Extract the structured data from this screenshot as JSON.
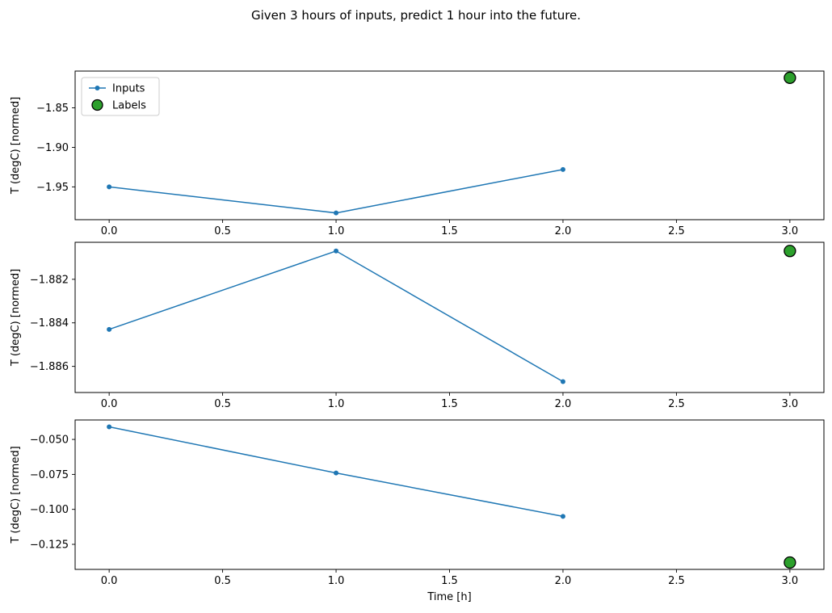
{
  "figure": {
    "title": "Given 3 hours of inputs, predict 1 hour into the future.",
    "background": "#ffffff"
  },
  "colors": {
    "inputs_line": "#1f77b4",
    "labels_marker": "#2ca02c",
    "labels_edge": "#000000",
    "axis": "#000000",
    "legend_border": "#cccccc"
  },
  "legend": {
    "visible_on_subplot": 1,
    "position": "upper-left",
    "entries": [
      "Inputs",
      "Labels"
    ]
  },
  "chart_data": [
    {
      "type": "line",
      "subplot": 1,
      "xlabel": "",
      "ylabel": "T (degC) [normed]",
      "xlim": [
        -0.15,
        3.15
      ],
      "ylim": [
        -1.9915,
        -1.8035
      ],
      "xticks": [
        0.0,
        0.5,
        1.0,
        1.5,
        2.0,
        2.5,
        3.0
      ],
      "xtick_labels": [
        "0.0",
        "0.5",
        "1.0",
        "1.5",
        "2.0",
        "2.5",
        "3.0"
      ],
      "yticks": [
        -1.85,
        -1.9,
        -1.95
      ],
      "ytick_labels": [
        "−1.85",
        "−1.90",
        "−1.95"
      ],
      "grid": false,
      "legend": true,
      "series": [
        {
          "name": "Inputs",
          "style": "line-marker",
          "color": "#1f77b4",
          "x": [
            0,
            1,
            2
          ],
          "y": [
            -1.95,
            -1.983,
            -1.928
          ]
        },
        {
          "name": "Labels",
          "style": "scatter",
          "color": "#2ca02c",
          "edge": "#000000",
          "x": [
            3
          ],
          "y": [
            -1.812
          ]
        }
      ]
    },
    {
      "type": "line",
      "subplot": 2,
      "xlabel": "",
      "ylabel": "T (degC) [normed]",
      "xlim": [
        -0.15,
        3.15
      ],
      "ylim": [
        -1.8872,
        -1.8803
      ],
      "xticks": [
        0.0,
        0.5,
        1.0,
        1.5,
        2.0,
        2.5,
        3.0
      ],
      "xtick_labels": [
        "0.0",
        "0.5",
        "1.0",
        "1.5",
        "2.0",
        "2.5",
        "3.0"
      ],
      "yticks": [
        -1.882,
        -1.884,
        -1.886
      ],
      "ytick_labels": [
        "−1.882",
        "−1.884",
        "−1.886"
      ],
      "grid": false,
      "legend": false,
      "series": [
        {
          "name": "Inputs",
          "style": "line-marker",
          "color": "#1f77b4",
          "x": [
            0,
            1,
            2
          ],
          "y": [
            -1.8843,
            -1.8807,
            -1.8867
          ]
        },
        {
          "name": "Labels",
          "style": "scatter",
          "color": "#2ca02c",
          "edge": "#000000",
          "x": [
            3
          ],
          "y": [
            -1.8807
          ]
        }
      ]
    },
    {
      "type": "line",
      "subplot": 3,
      "xlabel": "Time [h]",
      "ylabel": "T (degC) [normed]",
      "xlim": [
        -0.15,
        3.15
      ],
      "ylim": [
        -0.1429,
        -0.0361
      ],
      "xticks": [
        0.0,
        0.5,
        1.0,
        1.5,
        2.0,
        2.5,
        3.0
      ],
      "xtick_labels": [
        "0.0",
        "0.5",
        "1.0",
        "1.5",
        "2.0",
        "2.5",
        "3.0"
      ],
      "yticks": [
        -0.05,
        -0.075,
        -0.1,
        -0.125
      ],
      "ytick_labels": [
        "−0.050",
        "−0.075",
        "−0.100",
        "−0.125"
      ],
      "grid": false,
      "legend": false,
      "series": [
        {
          "name": "Inputs",
          "style": "line-marker",
          "color": "#1f77b4",
          "x": [
            0,
            1,
            2
          ],
          "y": [
            -0.041,
            -0.074,
            -0.105
          ]
        },
        {
          "name": "Labels",
          "style": "scatter",
          "color": "#2ca02c",
          "edge": "#000000",
          "x": [
            3
          ],
          "y": [
            -0.138
          ]
        }
      ]
    }
  ]
}
